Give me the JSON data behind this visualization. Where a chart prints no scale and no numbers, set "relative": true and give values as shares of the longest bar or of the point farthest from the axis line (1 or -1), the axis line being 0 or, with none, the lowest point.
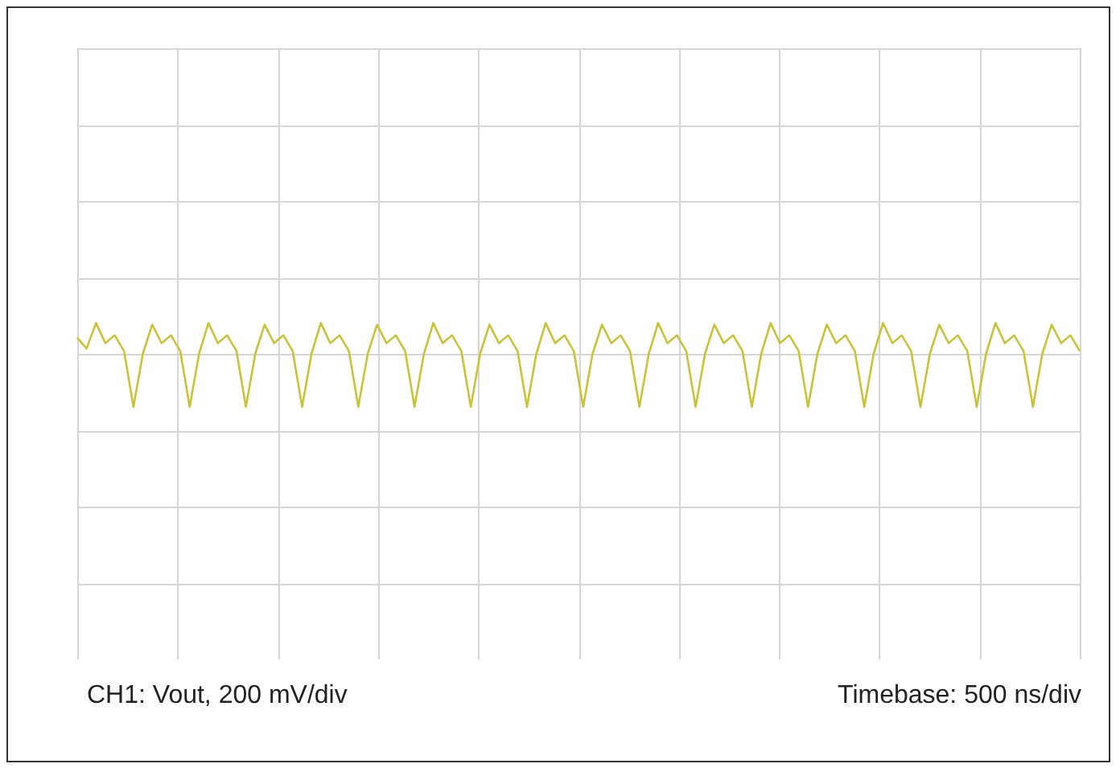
{
  "chart_data": {
    "type": "line",
    "relative": true,
    "grid": true,
    "annotations": [
      "CH1: Vout, 200 mV/div",
      "Timebase: 500 ns/div"
    ],
    "categories": [
      null,
      null,
      null,
      null,
      null,
      null,
      null,
      null,
      null,
      null,
      null,
      null,
      null,
      null,
      null,
      null,
      null,
      null,
      null,
      null,
      null,
      null,
      null,
      null,
      null,
      null,
      null,
      null,
      null,
      null,
      null,
      null,
      null,
      null,
      null,
      null,
      null,
      null,
      null,
      null,
      null,
      null,
      null,
      null,
      null,
      null,
      null,
      null,
      null,
      null,
      null,
      null,
      null,
      null,
      null,
      null,
      null,
      null,
      null,
      null,
      null,
      null,
      null,
      null,
      null,
      null,
      null,
      null,
      null,
      null,
      null,
      null,
      null,
      null,
      null,
      null,
      null,
      null,
      null,
      null,
      null,
      null,
      null,
      null,
      null,
      null,
      null,
      null,
      null,
      null,
      null,
      null,
      null,
      null,
      null,
      null,
      null,
      null,
      null,
      null,
      null,
      null,
      null,
      null,
      null,
      null,
      null,
      null
    ],
    "series": [
      {
        "color": "#c9c33a",
        "values": [
          0.3,
          0.1,
          0.58,
          0.2,
          0.35,
          0.05,
          -1,
          0,
          0.55,
          0.2,
          0.35,
          0.05,
          -1,
          0,
          0.58,
          0.2,
          0.35,
          0.05,
          -1,
          0,
          0.55,
          0.2,
          0.35,
          0.05,
          -1,
          0,
          0.58,
          0.2,
          0.35,
          0.05,
          -1,
          0,
          0.55,
          0.2,
          0.35,
          0.05,
          -1,
          0,
          0.58,
          0.2,
          0.35,
          0.05,
          -1,
          0,
          0.55,
          0.2,
          0.35,
          0.05,
          -1,
          0,
          0.58,
          0.2,
          0.35,
          0.05,
          -1,
          0,
          0.55,
          0.2,
          0.35,
          0.05,
          -1,
          0,
          0.58,
          0.2,
          0.35,
          0.05,
          -1,
          0,
          0.55,
          0.2,
          0.35,
          0.05,
          -1,
          0,
          0.58,
          0.2,
          0.35,
          0.05,
          -1,
          0,
          0.55,
          0.2,
          0.35,
          0.05,
          -1,
          0,
          0.58,
          0.2,
          0.35,
          0.05,
          -1,
          0,
          0.55,
          0.2,
          0.35,
          0.05,
          -1,
          0,
          0.58,
          0.2,
          0.35,
          0.05,
          -1,
          0,
          0.55,
          0.2,
          0.35,
          0.05
        ]
      }
    ]
  }
}
